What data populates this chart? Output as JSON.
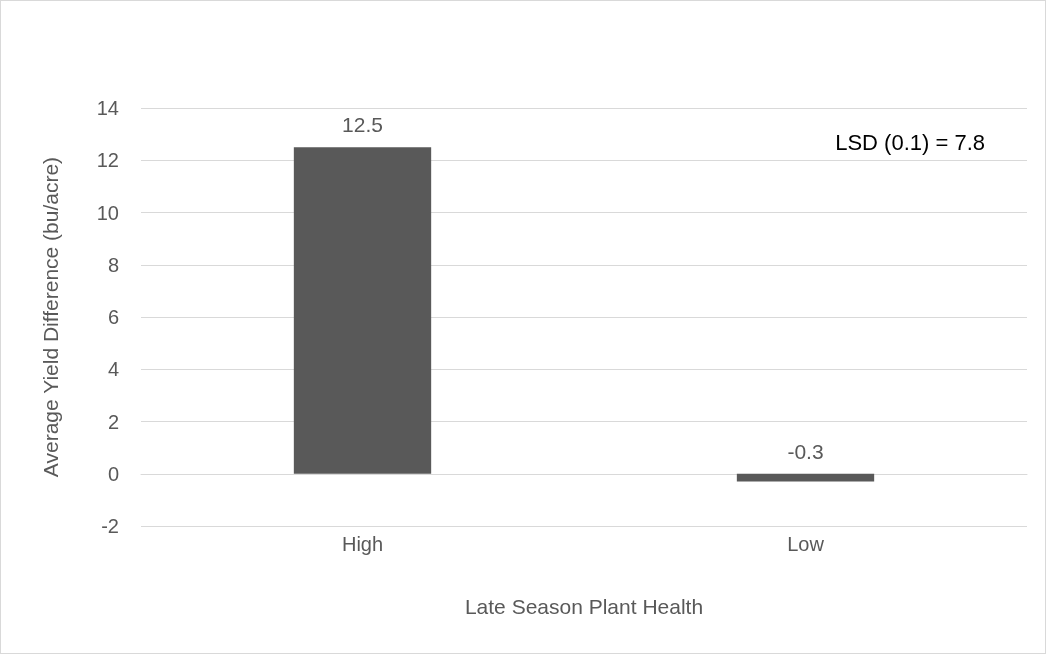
{
  "chart_data": {
    "type": "bar",
    "xlabel": "Late Season Plant Health",
    "ylabel": "Average Yield Difference (bu/acre)",
    "categories": [
      "High",
      "Low"
    ],
    "values": [
      12.5,
      -0.3
    ],
    "color": "#595959",
    "ylim": [
      -2,
      14
    ],
    "yticks": [
      -2,
      0,
      2,
      4,
      6,
      8,
      10,
      12,
      14
    ],
    "grid": "y",
    "data_labels": true,
    "annotations": [
      "LSD (0.1) = 7.8"
    ]
  }
}
